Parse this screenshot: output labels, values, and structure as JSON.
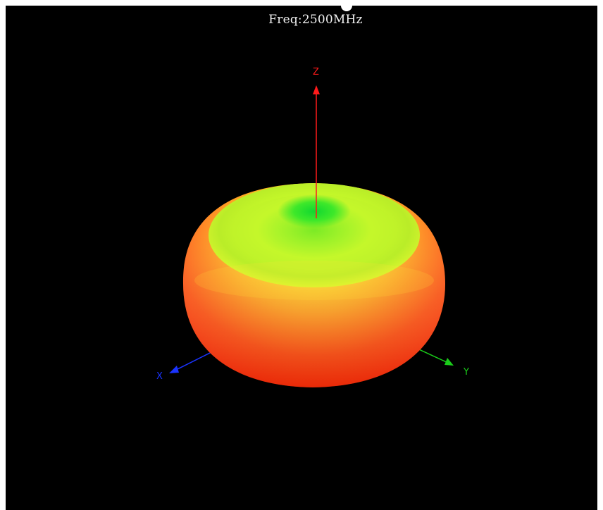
{
  "viewer": {
    "title": "Freq:2500MHz"
  },
  "axes": {
    "z": {
      "label": "Z",
      "color": "#ff1a1a"
    },
    "x": {
      "label": "X",
      "color": "#1a33ff"
    },
    "y": {
      "label": "Y",
      "color": "#1acc1a"
    }
  },
  "pattern": {
    "shape": "toroidal-radiation-pattern",
    "color_low": "#22dd22",
    "color_mid": "#ffee22",
    "color_high": "#ff2a0a"
  }
}
